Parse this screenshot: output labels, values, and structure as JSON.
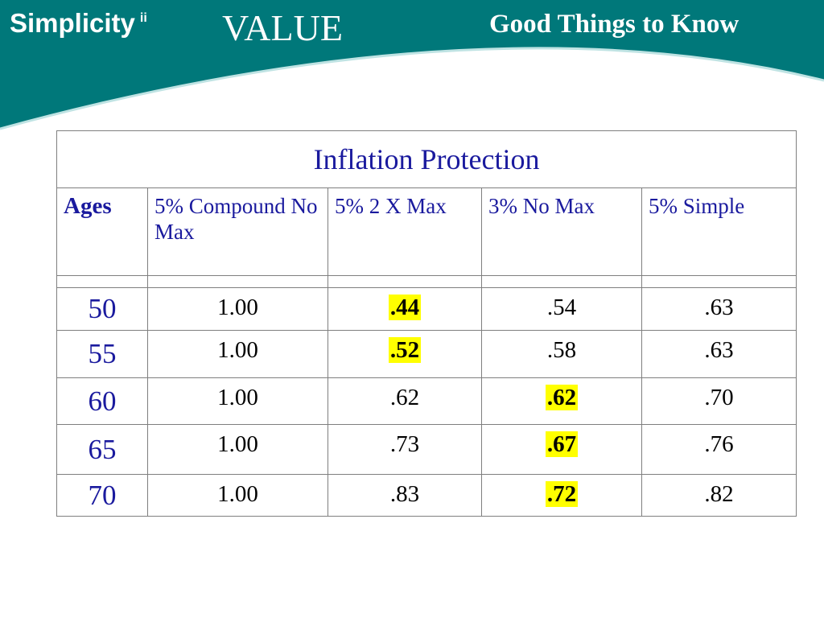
{
  "header": {
    "brand": "Simplicity",
    "brand_mark": "ii",
    "value_word": "VALUE",
    "topic": "Good Things to Know",
    "colors": {
      "teal": "#00787a",
      "highlight": "#ffff00",
      "blue_text": "#1a1a9e"
    }
  },
  "table": {
    "title": "Inflation Protection",
    "columns": [
      "Ages",
      "5% Compound No Max",
      "5% 2 X Max",
      "3% No Max",
      "5% Simple"
    ],
    "rows": [
      {
        "age": "50",
        "values": [
          "1.00",
          ".44",
          ".54",
          ".63"
        ],
        "highlighted": [
          false,
          true,
          false,
          false
        ]
      },
      {
        "age": "55",
        "values": [
          "1.00",
          ".52",
          ".58",
          ".63"
        ],
        "highlighted": [
          false,
          true,
          false,
          false
        ]
      },
      {
        "age": "60",
        "values": [
          "1.00",
          ".62",
          ".62",
          ".70"
        ],
        "highlighted": [
          false,
          false,
          true,
          false
        ]
      },
      {
        "age": "65",
        "values": [
          "1.00",
          ".73",
          ".67",
          ".76"
        ],
        "highlighted": [
          false,
          false,
          true,
          false
        ]
      },
      {
        "age": "70",
        "values": [
          "1.00",
          ".83",
          ".72",
          ".82"
        ],
        "highlighted": [
          false,
          false,
          true,
          false
        ]
      }
    ]
  }
}
